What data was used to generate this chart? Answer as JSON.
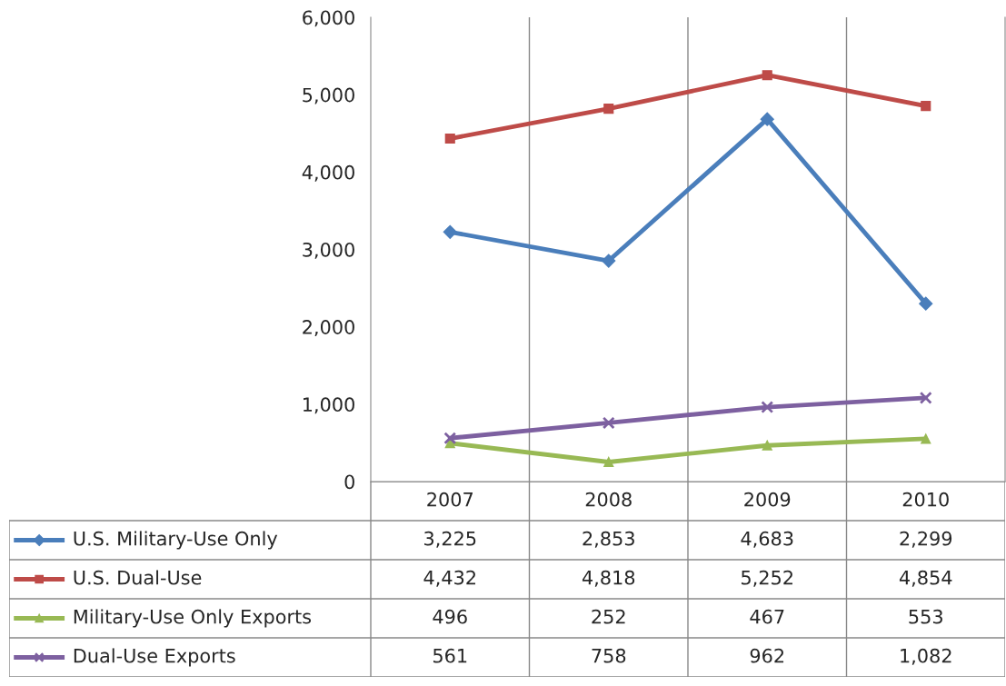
{
  "chart_data": {
    "type": "line",
    "categories": [
      "2007",
      "2008",
      "2009",
      "2010"
    ],
    "series": [
      {
        "name": "U.S. Military-Use Only",
        "color": "#4a7ebb",
        "marker": "diamond",
        "values": [
          3225,
          2853,
          4683,
          2299
        ],
        "value_labels": [
          "3,225",
          "2,853",
          "4,683",
          "2,299"
        ]
      },
      {
        "name": "U.S. Dual-Use",
        "color": "#be4b48",
        "marker": "square",
        "values": [
          4432,
          4818,
          5252,
          4854
        ],
        "value_labels": [
          "4,432",
          "4,818",
          "5,252",
          "4,854"
        ]
      },
      {
        "name": "Military-Use Only Exports",
        "color": "#98b954",
        "marker": "triangle",
        "values": [
          496,
          252,
          467,
          553
        ],
        "value_labels": [
          "496",
          "252",
          "467",
          "553"
        ]
      },
      {
        "name": "Dual-Use Exports",
        "color": "#7d60a0",
        "marker": "cross",
        "values": [
          561,
          758,
          962,
          1082
        ],
        "value_labels": [
          "561",
          "758",
          "962",
          "1,082"
        ]
      }
    ],
    "ylim": [
      0,
      6000
    ],
    "yticks": [
      0,
      {
        "value": 1000,
        "label": "1,000"
      },
      {
        "value": 2000,
        "label": "2,000"
      },
      {
        "value": 3000,
        "label": "3,000"
      },
      {
        "value": 4000,
        "label": "4,000"
      },
      {
        "value": 5000,
        "label": "5,000"
      },
      {
        "value": 6000,
        "label": "6,000"
      }
    ],
    "grid": "x",
    "legend": "bottom left",
    "line_style": "solid"
  }
}
